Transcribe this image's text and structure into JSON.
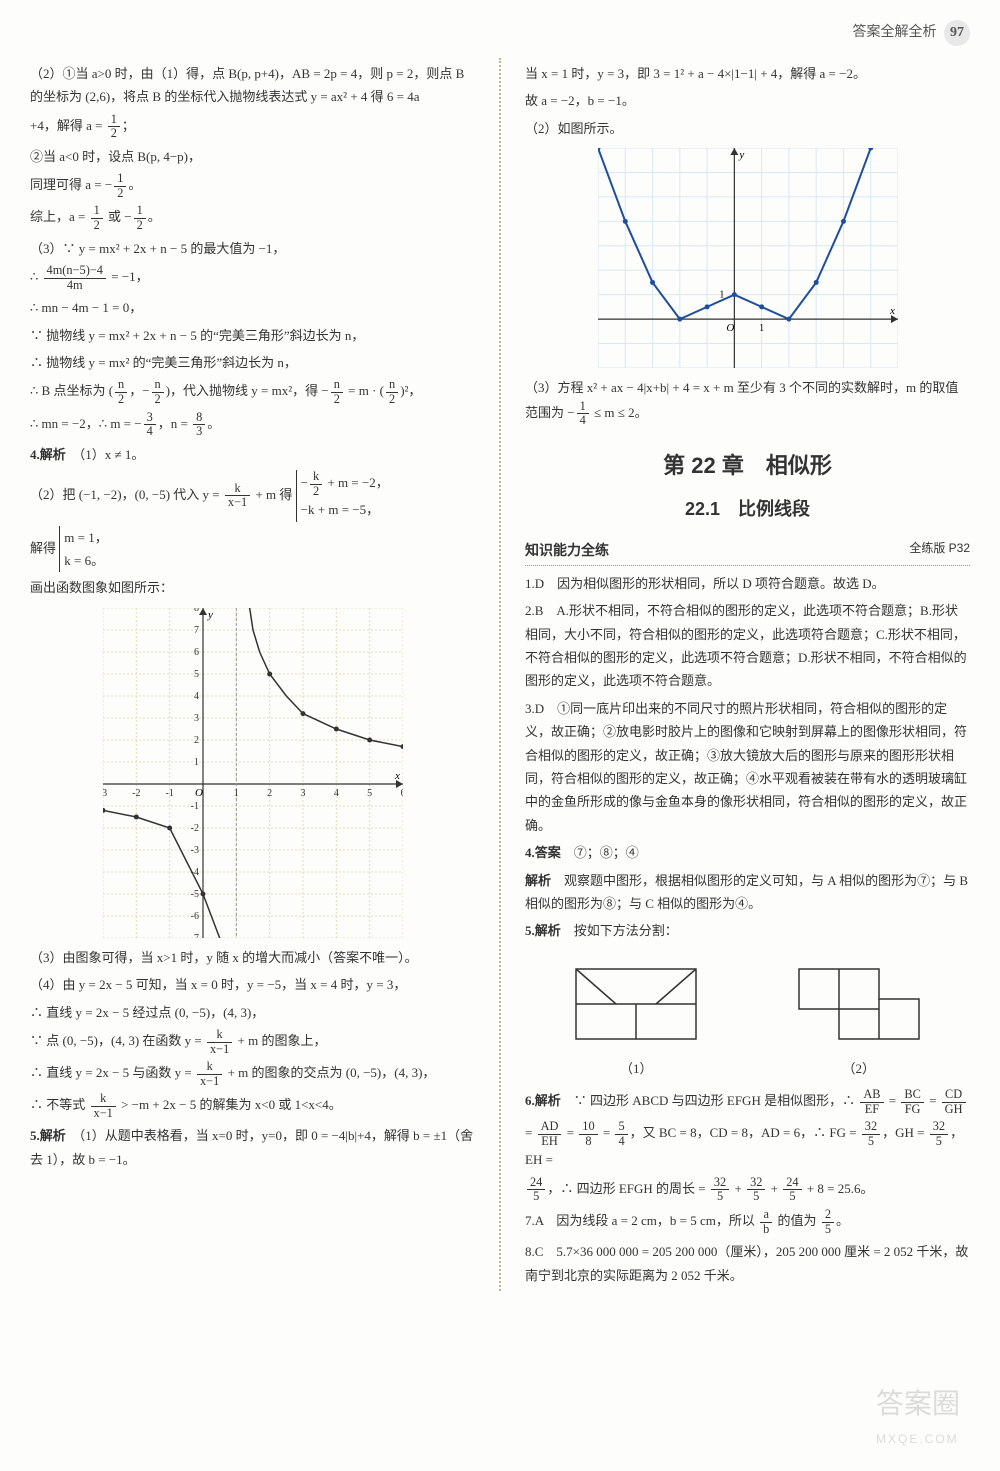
{
  "header": {
    "title": "答案全解全析",
    "page": "97"
  },
  "left": {
    "p1": "（2）①当 a>0 时，由（1）得，点 B(p, p+4)，AB = 2p = 4，则 p = 2，则点 B 的坐标为 (2,6)，将点 B 的坐标代入抛物线表达式 y = ax² + 4 得 6 = 4a",
    "p2_pre": "+4，解得 a = ",
    "p2_post": "；",
    "p3": "②当 a<0 时，设点 B(p, 4−p)，",
    "p4_pre": "同理可得 a = −",
    "p4_post": "。",
    "p5_pre": "综上，a = ",
    "p5_mid": " 或 −",
    "p5_post": "。",
    "p6": "（3）∵ y = mx² + 2x + n − 5 的最大值为 −1，",
    "p7_pre": "∴ ",
    "p7_post": " = −1，",
    "p8": "∴ mn − 4m − 1 = 0，",
    "p9": "∵ 抛物线 y = mx² + 2x + n − 5 的“完美三角形”斜边长为 n，",
    "p10": "∴ 抛物线 y = mx² 的“完美三角形”斜边长为 n，",
    "p11_pre": "∴ B 点坐标为 (",
    "p11_mid1": "，−",
    "p11_mid2": ")，代入抛物线 y = mx²，得 −",
    "p11_mid3": " = m · (",
    "p11_post": ")²，",
    "p12_pre": "∴ mn = −2，∴ m = −",
    "p12_mid": "，n = ",
    "p12_post": "。",
    "q4_head": "4.解析",
    "q4_1": "（1）x ≠ 1。",
    "q4_2_pre": "（2）把 (−1, −2)，(0, −5) 代入 y = ",
    "q4_2_mid": " + m 得 ",
    "q4_2_sys1_pre": "−",
    "q4_2_sys1_post": " + m = −2，",
    "q4_2_sys2": "−k + m = −5，",
    "q4_3_pre": "解得 ",
    "q4_3_a": "m = 1，",
    "q4_3_b": "k = 6。",
    "q4_4": "画出函数图象如图所示：",
    "q4_5": "（3）由图象可得，当 x>1 时，y 随 x 的增大而减小（答案不唯一）。",
    "q4_6": "（4）由 y = 2x − 5 可知，当 x = 0 时，y = −5，当 x = 4 时，y = 3，",
    "q4_7": "∴ 直线 y = 2x − 5 经过点 (0, −5)，(4, 3)，",
    "q4_8_pre": "∵ 点 (0, −5)，(4, 3) 在函数 y = ",
    "q4_8_post": " + m 的图象上，",
    "q4_9_pre": "∴ 直线 y = 2x − 5 与函数 y = ",
    "q4_9_post": " + m 的图象的交点为 (0, −5)，(4, 3)，",
    "q4_10_pre": "∴ 不等式 ",
    "q4_10_post": " > −m + 2x − 5 的解集为 x<0 或 1<x<4。",
    "q5_head": "5.解析",
    "q5_1": "（1）从题中表格看，当 x=0 时，y=0，即 0 = −4|b|+4，解得 b = ±1（舍去 1），故 b = −1。",
    "graph1": {
      "xmin": -3,
      "xmax": 6,
      "ymin": -7,
      "ymax": 8,
      "grid_color": "#e3d9b8",
      "axis_color": "#333",
      "branch1_pts": [
        [
          1.4,
          8
        ],
        [
          1.5,
          7
        ],
        [
          1.7,
          6
        ],
        [
          2,
          5
        ],
        [
          2.5,
          4
        ],
        [
          3,
          3.2
        ],
        [
          4,
          2.5
        ],
        [
          5,
          2
        ],
        [
          6,
          1.7
        ]
      ],
      "branch2_pts": [
        [
          -3,
          -1.2
        ],
        [
          -2,
          -1.5
        ],
        [
          -1,
          -2
        ],
        [
          0,
          -5
        ],
        [
          0.5,
          -7
        ]
      ],
      "dots": [
        [
          -3,
          -1.2
        ],
        [
          -2,
          -1.5
        ],
        [
          -1,
          -2
        ],
        [
          0,
          -5
        ],
        [
          2,
          5
        ],
        [
          3,
          3.2
        ],
        [
          4,
          2.5
        ],
        [
          5,
          2
        ],
        [
          6,
          1.7
        ]
      ],
      "xticks": [
        -3,
        -2,
        -1,
        1,
        2,
        3,
        4,
        5,
        6
      ],
      "yticks": [
        -7,
        -6,
        -5,
        -4,
        -3,
        -2,
        -1,
        1,
        2,
        3,
        4,
        5,
        6,
        7,
        8
      ]
    }
  },
  "right": {
    "p1": "当 x = 1 时，y = 3，即 3 = 1² + a − 4×|1−1| + 4，解得 a = −2。",
    "p2": "故 a = −2，b = −1。",
    "p3": "（2）如图所示。",
    "graph2": {
      "xmin": -5,
      "xmax": 6,
      "ymin": -2,
      "ymax": 7,
      "grid_color": "#d8e8f5",
      "axis_color": "#333",
      "curve_color": "#1f4e9c",
      "left_pts": [
        [
          -5,
          7
        ],
        [
          -4,
          4
        ],
        [
          -3,
          1.5
        ],
        [
          -2,
          0
        ],
        [
          -1,
          0.5
        ],
        [
          0,
          1
        ]
      ],
      "right_pts": [
        [
          0,
          1
        ],
        [
          1,
          0.5
        ],
        [
          2,
          0
        ],
        [
          3,
          1.5
        ],
        [
          4,
          4
        ],
        [
          5,
          7
        ]
      ],
      "dots": [
        [
          -5,
          7
        ],
        [
          -4,
          4
        ],
        [
          -3,
          1.5
        ],
        [
          -2,
          0
        ],
        [
          -1,
          0.5
        ],
        [
          0,
          1
        ],
        [
          1,
          0.5
        ],
        [
          2,
          0
        ],
        [
          3,
          1.5
        ],
        [
          4,
          4
        ],
        [
          5,
          7
        ]
      ],
      "o_label": "O",
      "one_label": "1"
    },
    "p4_pre": "（3）方程 x² + ax − 4|x+b| + 4 = x + m 至少有 3 个不同的实数解时，m 的取值范围为 −",
    "p4_post": " ≤ m ≤ 2。",
    "chapter": "第 22 章　相似形",
    "section": "22.1　比例线段",
    "subhead": "知识能力全练",
    "subhead_right": "全练版 P32",
    "q1": "1.D　因为相似图形的形状相同，所以 D 项符合题意。故选 D。",
    "q2": "2.B　A.形状不相同，不符合相似的图形的定义，此选项不符合题意；B.形状相同，大小不同，符合相似的图形的定义，此选项符合题意；C.形状不相同，不符合相似的图形的定义，此选项不符合题意；D.形状不相同，不符合相似的图形的定义，此选项不符合题意。",
    "q3": "3.D　①同一底片印出来的不同尺寸的照片形状相同，符合相似的图形的定义，故正确；②放电影时胶片上的图像和它映射到屏幕上的图像形状相同，符合相似的图形的定义，故正确；③放大镜放大后的图形与原来的图形形状相同，符合相似的图形的定义，故正确；④水平观看被装在带有水的透明玻璃缸中的金鱼所形成的像与金鱼本身的像形状相同，符合相似的图形的定义，故正确。",
    "q4_head": "4.答案",
    "q4_ans": "⑦；⑧；④",
    "q4_exp_head": "解析",
    "q4_exp": "　观察题中图形，根据相似图形的定义可知，与 A 相似的图形为⑦；与 B 相似的图形为⑧；与 C 相似的图形为④。",
    "q5_head": "5.解析",
    "q5_text": "　按如下方法分割：",
    "fig1_label": "（1）",
    "fig2_label": "（2）",
    "q6_head": "6.解析",
    "q6_pre": "　∵ 四边形 ABCD 与四边形 EFGH 是相似图形，∴ ",
    "q6_eq1_a": "AB",
    "q6_eq1_b": "EF",
    "q6_eq2_a": "BC",
    "q6_eq2_b": "FG",
    "q6_eq3_a": "CD",
    "q6_eq3_b": "GH",
    "q6_mid1_a": "AD",
    "q6_mid1_b": "EH",
    "q6_mid2_a": "10",
    "q6_mid2_b": "8",
    "q6_mid3_a": "5",
    "q6_mid3_b": "4",
    "q6_mid_txt": "，又 BC = 8，CD = 8，AD = 6，∴ FG = ",
    "q6_v1_a": "32",
    "q6_v1_b": "5",
    "q6_mid_txt2": "，GH = ",
    "q6_mid_txt3": "，EH = ",
    "q6_v2_a": "24",
    "q6_v2_b": "5",
    "q6_end_txt": "，∴ 四边形 EFGH 的周长 = ",
    "q6_sum_post": " + 8 = 25.6。",
    "q7_pre": "7.A　因为线段 a = 2 cm，b = 5 cm，所以 ",
    "q7_frac_a": "a",
    "q7_frac_b": "b",
    "q7_mid": " 的值为 ",
    "q7_v_a": "2",
    "q7_v_b": "5",
    "q7_post": "。",
    "q8": "8.C　5.7×36 000 000 = 205 200 000（厘米），205 200 000 厘米 = 2 052 千米，故南宁到北京的实际距离为 2 052 千米。"
  },
  "watermark": {
    "main": "答案圈",
    "sub": "MXQE.COM"
  }
}
